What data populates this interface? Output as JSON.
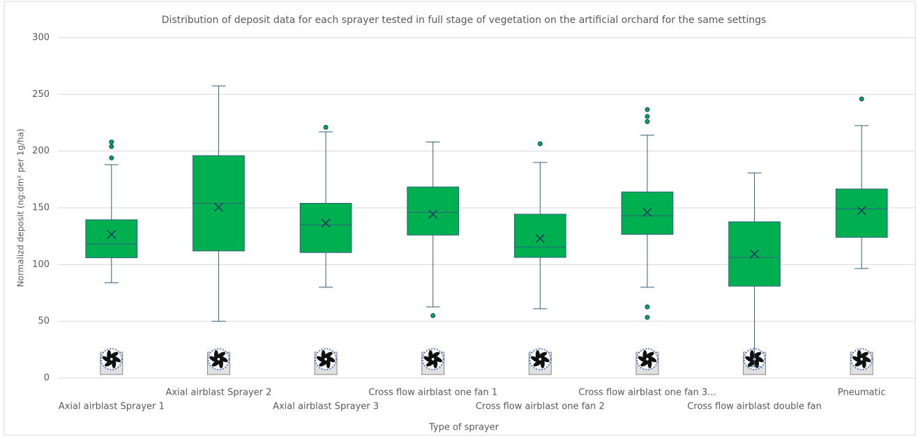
{
  "chart_data": {
    "type": "box",
    "title": "Distribution of deposit data for each sprayer tested in full stage of vegetation on the artificial orchard for the same settings",
    "x_label": "Type of sprayer",
    "y_label": "Normalizd deposit (ng:dm² per 1g/ha)",
    "categories": [
      "Axial airblast Sprayer 1",
      "Axial airblast Sprayer 2",
      "Axial airblast Sprayer 3",
      "Cross flow airblast one fan 1",
      "Cross flow airblast one fan 2",
      "Cross flow airblast one fan 3...",
      "Cross flow airblast double fan",
      "Pneumatic"
    ],
    "color": "#00b050",
    "boxes": [
      {
        "min": 84,
        "q1": 106,
        "median": 118,
        "q3": 139.5,
        "max": 188,
        "mean": 126.6,
        "outliers": [
          208,
          204,
          194
        ]
      },
      {
        "min": 50,
        "q1": 112,
        "median": 154,
        "q3": 196,
        "max": 257.5,
        "mean": 150.6,
        "outliers": []
      },
      {
        "min": 80,
        "q1": 110.6,
        "median": 135,
        "q3": 154,
        "max": 217,
        "mean": 136.5,
        "outliers": [
          221
        ]
      },
      {
        "min": 62.7,
        "q1": 126,
        "median": 146,
        "q3": 168.4,
        "max": 208,
        "mean": 144.4,
        "outliers": [
          55
        ]
      },
      {
        "min": 61,
        "q1": 106.3,
        "median": 115.5,
        "q3": 144.4,
        "max": 190,
        "mean": 123,
        "outliers": [
          206.5
        ]
      },
      {
        "min": 80,
        "q1": 126.6,
        "median": 143,
        "q3": 164,
        "max": 214,
        "mean": 146,
        "outliers": [
          236.6,
          230.5,
          226,
          62.7,
          53.5
        ]
      },
      {
        "min": 10,
        "q1": 81,
        "median": 106.3,
        "q3": 137.7,
        "max": 180.7,
        "mean": 109.4,
        "outliers": []
      },
      {
        "min": 96.5,
        "q1": 124,
        "median": 149,
        "q3": 166.6,
        "max": 222.5,
        "mean": 147.5,
        "outliers": [
          246
        ]
      }
    ],
    "ylim": [
      0,
      300
    ],
    "yticks": [
      0,
      50,
      100,
      150,
      200,
      250,
      300
    ],
    "grid": true
  }
}
